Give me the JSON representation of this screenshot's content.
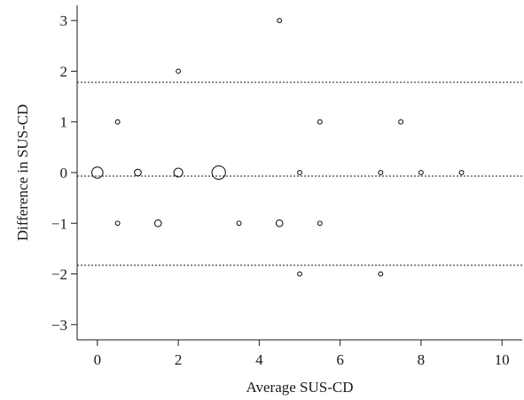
{
  "chart_data": {
    "type": "scatter",
    "title": "",
    "xlabel": "Average SUS-CD",
    "ylabel": "Difference in SUS-CD",
    "xlim": [
      -0.5,
      10.5
    ],
    "ylim": [
      -3.3,
      3.3
    ],
    "xticks": [
      0,
      2,
      4,
      6,
      8,
      10
    ],
    "xtick_labels": [
      "0",
      "2",
      "4",
      "6",
      "8",
      "10"
    ],
    "yticks": [
      -3,
      -2,
      -1,
      0,
      1,
      2,
      3
    ],
    "ytick_labels": [
      "−3",
      "−2",
      "−1",
      "0",
      "1",
      "2",
      "3"
    ],
    "grid": false,
    "marker": "open circle, size proportional to count",
    "reference_lines": [
      {
        "y": 1.78,
        "style": "dotted"
      },
      {
        "y": -0.07,
        "style": "dotted"
      },
      {
        "y": -1.83,
        "style": "dotted"
      }
    ],
    "points": [
      {
        "x": 0,
        "y": 0,
        "count": 4
      },
      {
        "x": 0.5,
        "y": 1,
        "count": 1
      },
      {
        "x": 0.5,
        "y": -1,
        "count": 1
      },
      {
        "x": 1,
        "y": 0,
        "count": 2
      },
      {
        "x": 1.5,
        "y": -1,
        "count": 2
      },
      {
        "x": 2,
        "y": 2,
        "count": 1
      },
      {
        "x": 2,
        "y": 0,
        "count": 3
      },
      {
        "x": 3,
        "y": 0,
        "count": 5
      },
      {
        "x": 3.5,
        "y": -1,
        "count": 1
      },
      {
        "x": 4.5,
        "y": 3,
        "count": 1
      },
      {
        "x": 4.5,
        "y": -1,
        "count": 2
      },
      {
        "x": 5,
        "y": 0,
        "count": 1
      },
      {
        "x": 5,
        "y": -2,
        "count": 1
      },
      {
        "x": 5.5,
        "y": 1,
        "count": 1
      },
      {
        "x": 5.5,
        "y": -1,
        "count": 1
      },
      {
        "x": 7,
        "y": 0,
        "count": 1
      },
      {
        "x": 7,
        "y": -2,
        "count": 1
      },
      {
        "x": 7.5,
        "y": 1,
        "count": 1
      },
      {
        "x": 8,
        "y": 0,
        "count": 1
      },
      {
        "x": 9,
        "y": 0,
        "count": 1
      }
    ]
  }
}
